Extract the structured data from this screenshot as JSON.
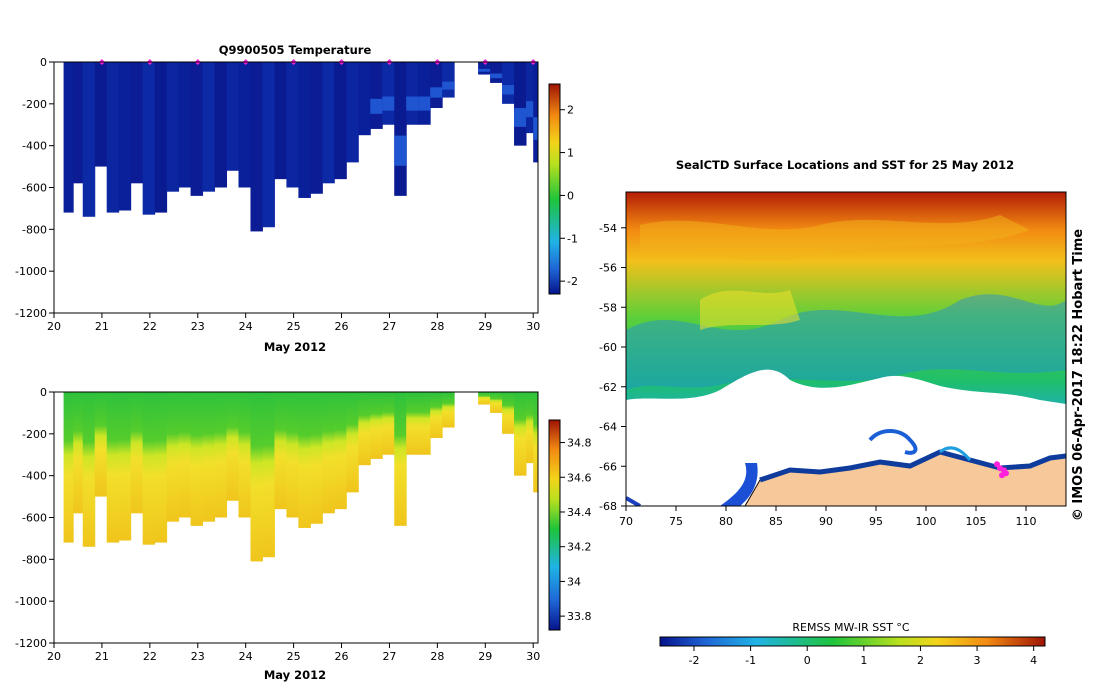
{
  "colors": {
    "deep": "#06138c",
    "mid": "#1f66d6",
    "cyan": "#1fb3e6",
    "green": "#1fc43a",
    "yellow": "#f2d41a",
    "orange": "#f28a12",
    "red": "#9e1304",
    "land": "#f7c89a",
    "coast": "#103e9c",
    "marker": "#ff22dd"
  },
  "chart_data": [
    {
      "type": "heatmap",
      "title": "Q9900505  Temperature",
      "xlabel": "May 2012",
      "ylabel": "",
      "x_ticks": [
        20,
        21,
        22,
        23,
        24,
        25,
        26,
        27,
        28,
        29,
        30
      ],
      "y_ticks": [
        0,
        -200,
        -400,
        -600,
        -800,
        -1000,
        -1200
      ],
      "xlim": [
        20,
        30.1
      ],
      "ylim": [
        -1200,
        0
      ],
      "profile_days": [
        20.2,
        20.4,
        20.6,
        20.85,
        21.1,
        21.35,
        21.6,
        21.85,
        22.1,
        22.35,
        22.6,
        22.85,
        23.1,
        23.35,
        23.6,
        23.85,
        24.1,
        24.35,
        24.6,
        24.85,
        25.1,
        25.35,
        25.6,
        25.85,
        26.1,
        26.35,
        26.6,
        26.85,
        27.1,
        27.35,
        27.6,
        27.85,
        28.1,
        28.35,
        28.6,
        28.85,
        29.1,
        29.35,
        29.6,
        29.85,
        30.0
      ],
      "profile_max_depth": [
        720,
        580,
        740,
        500,
        720,
        710,
        580,
        730,
        720,
        620,
        600,
        640,
        620,
        600,
        520,
        600,
        810,
        790,
        560,
        600,
        650,
        630,
        580,
        560,
        480,
        350,
        320,
        300,
        640,
        300,
        300,
        220,
        170,
        0,
        0,
        60,
        100,
        200,
        400,
        340,
        480
      ],
      "marker_days": [
        21,
        22,
        23,
        24,
        25,
        26,
        27,
        28,
        29,
        30
      ],
      "colorbar_ticks": [
        2,
        1,
        0,
        -1,
        -2
      ],
      "colorbar_range": [
        -2.3,
        2.6
      ]
    },
    {
      "type": "heatmap",
      "title": "",
      "xlabel": "May 2012",
      "ylabel": "",
      "x_ticks": [
        20,
        21,
        22,
        23,
        24,
        25,
        26,
        27,
        28,
        29,
        30
      ],
      "y_ticks": [
        0,
        -200,
        -400,
        -600,
        -800,
        -1000,
        -1200
      ],
      "xlim": [
        20,
        30.1
      ],
      "ylim": [
        -1200,
        0
      ],
      "colorbar_ticks": [
        34.8,
        34.6,
        34.4,
        34.2,
        34,
        33.8
      ],
      "colorbar_range": [
        33.72,
        34.93
      ]
    },
    {
      "type": "heatmap",
      "title": "SealCTD Surface Locations and SST for 25 May 2012",
      "xlabel": "",
      "ylabel": "",
      "x_ticks": [
        70,
        75,
        80,
        85,
        90,
        95,
        100,
        105,
        110
      ],
      "y_ticks": [
        -54,
        -56,
        -58,
        -60,
        -62,
        -64,
        -66,
        -68
      ],
      "xlim": [
        70,
        114
      ],
      "ylim": [
        -68,
        -52.2
      ],
      "side_text": "© IMOS 06-Apr-2017 18:22 Hobart Time",
      "colorbar_label": "REMSS MW-IR SST °C",
      "colorbar_ticks": [
        -2,
        -1,
        0,
        1,
        2,
        3,
        4
      ],
      "colorbar_range": [
        -2.6,
        4.2
      ],
      "track": [
        [
          107.1,
          -65.9
        ],
        [
          107.4,
          -66.1
        ],
        [
          107.8,
          -66.2
        ],
        [
          108.0,
          -66.35
        ],
        [
          107.6,
          -66.45
        ]
      ]
    }
  ]
}
